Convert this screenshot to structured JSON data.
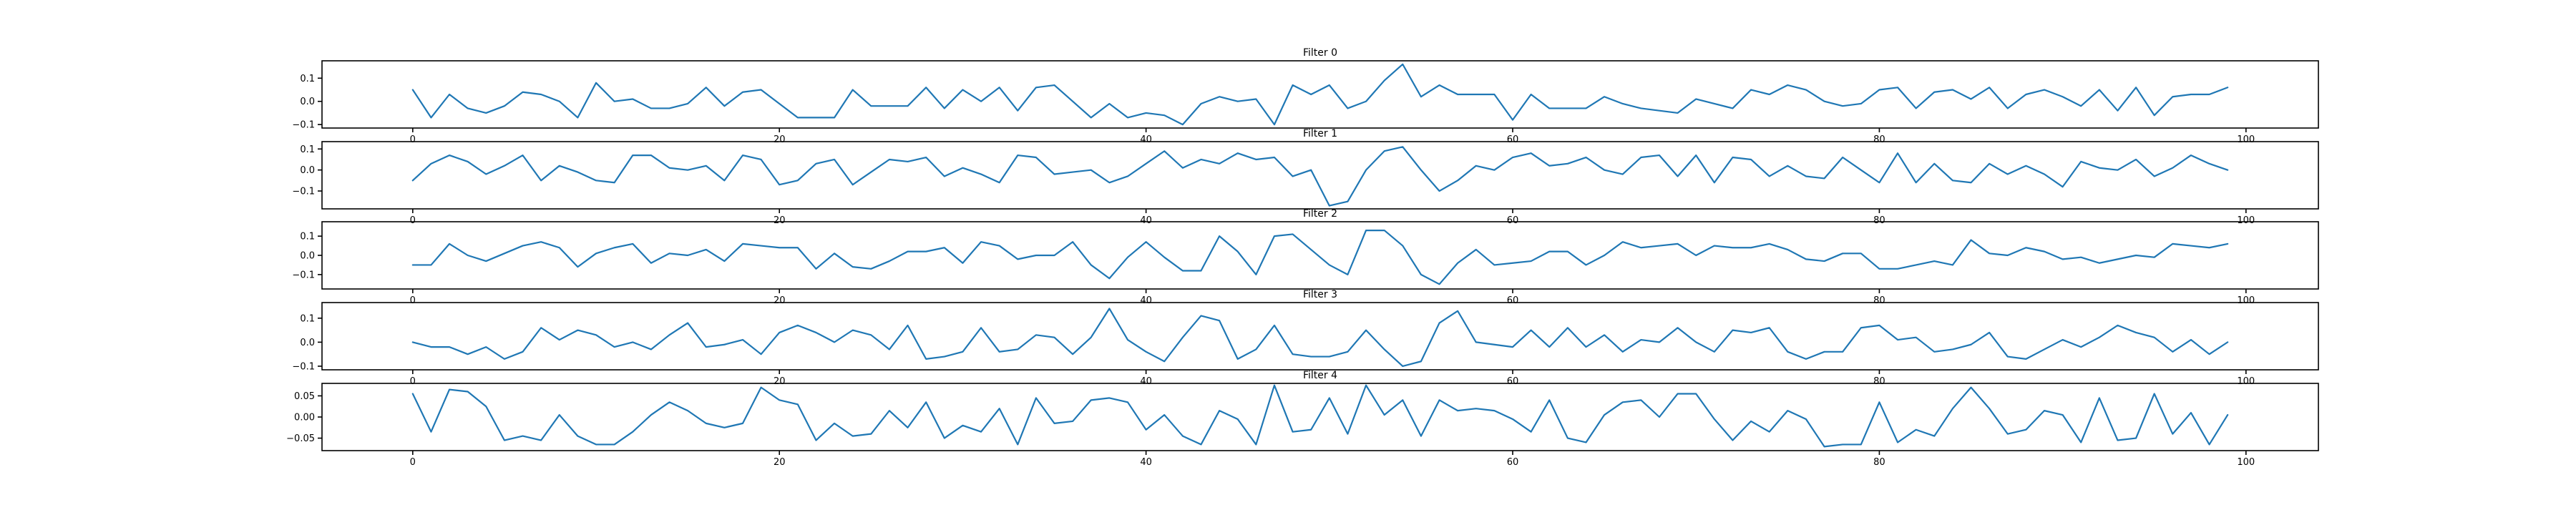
{
  "chart_data": [
    {
      "type": "line",
      "title": "Filter 0",
      "xlabel": "",
      "ylabel": "",
      "xlim": [
        -4.95,
        103.95
      ],
      "ylim": [
        -0.115,
        0.175
      ],
      "xticks": [
        0,
        20,
        40,
        60,
        80,
        100
      ],
      "yticks": [
        0.1,
        0.0,
        -0.1
      ],
      "ytick_labels": [
        "0.1",
        "0.0",
        "−0.1"
      ],
      "grid": false,
      "color": "#1f77b4",
      "values": [
        0.05,
        -0.07,
        0.03,
        -0.03,
        -0.05,
        -0.02,
        0.04,
        0.03,
        0.0,
        -0.07,
        0.08,
        0.0,
        0.01,
        -0.03,
        -0.03,
        -0.01,
        0.06,
        -0.02,
        0.04,
        0.05,
        -0.01,
        -0.07,
        -0.07,
        -0.07,
        0.05,
        -0.02,
        -0.02,
        -0.02,
        0.06,
        -0.03,
        0.05,
        0.0,
        0.06,
        -0.04,
        0.06,
        0.07,
        0.0,
        -0.07,
        -0.01,
        -0.07,
        -0.05,
        -0.06,
        -0.1,
        -0.01,
        0.02,
        0.0,
        0.01,
        -0.1,
        0.07,
        0.03,
        0.07,
        -0.03,
        0.0,
        0.09,
        0.16,
        0.02,
        0.07,
        0.03,
        0.03,
        0.03,
        -0.08,
        0.03,
        -0.03,
        -0.03,
        -0.03,
        0.02,
        -0.01,
        -0.03,
        -0.04,
        -0.05,
        0.01,
        -0.01,
        -0.03,
        0.05,
        0.03,
        0.07,
        0.05,
        0.0,
        -0.02,
        -0.01,
        0.05,
        0.06,
        -0.03,
        0.04,
        0.05,
        0.01,
        0.06,
        -0.03,
        0.03,
        0.05,
        0.02,
        -0.02,
        0.05,
        -0.04,
        0.06,
        -0.06,
        0.02,
        0.03,
        0.03,
        0.06
      ]
    },
    {
      "type": "line",
      "title": "Filter 1",
      "xlabel": "",
      "ylabel": "",
      "xlim": [
        -4.95,
        103.95
      ],
      "ylim": [
        -0.185,
        0.135
      ],
      "xticks": [
        0,
        20,
        40,
        60,
        80,
        100
      ],
      "yticks": [
        0.1,
        0.0,
        -0.1
      ],
      "ytick_labels": [
        "0.1",
        "0.0",
        "−0.1"
      ],
      "grid": false,
      "color": "#1f77b4",
      "values": [
        -0.05,
        0.03,
        0.07,
        0.04,
        -0.02,
        0.02,
        0.07,
        -0.05,
        0.02,
        -0.01,
        -0.05,
        -0.06,
        0.07,
        0.07,
        0.01,
        0.0,
        0.02,
        -0.05,
        0.07,
        0.05,
        -0.07,
        -0.05,
        0.03,
        0.05,
        -0.07,
        -0.01,
        0.05,
        0.04,
        0.06,
        -0.03,
        0.01,
        -0.02,
        -0.06,
        0.07,
        0.06,
        -0.02,
        -0.01,
        0.0,
        -0.06,
        -0.03,
        0.03,
        0.09,
        0.01,
        0.05,
        0.03,
        0.08,
        0.05,
        0.06,
        -0.03,
        0.0,
        -0.17,
        -0.15,
        0.0,
        0.09,
        0.11,
        0.0,
        -0.1,
        -0.05,
        0.02,
        0.0,
        0.06,
        0.08,
        0.02,
        0.03,
        0.06,
        0.0,
        -0.02,
        0.06,
        0.07,
        -0.03,
        0.07,
        -0.06,
        0.06,
        0.05,
        -0.03,
        0.02,
        -0.03,
        -0.04,
        0.06,
        0.0,
        -0.06,
        0.08,
        -0.06,
        0.03,
        -0.05,
        -0.06,
        0.03,
        -0.02,
        0.02,
        -0.02,
        -0.08,
        0.04,
        0.01,
        0.0,
        0.05,
        -0.03,
        0.01,
        0.07,
        0.03,
        0.0
      ]
    },
    {
      "type": "line",
      "title": "Filter 2",
      "xlabel": "",
      "ylabel": "",
      "xlim": [
        -4.95,
        103.95
      ],
      "ylim": [
        -0.175,
        0.175
      ],
      "xticks": [
        0,
        20,
        40,
        60,
        80,
        100
      ],
      "yticks": [
        0.1,
        0.0,
        -0.1
      ],
      "ytick_labels": [
        "0.1",
        "0.0",
        "−0.1"
      ],
      "grid": false,
      "color": "#1f77b4",
      "values": [
        -0.05,
        -0.05,
        0.06,
        0.0,
        -0.03,
        0.01,
        0.05,
        0.07,
        0.04,
        -0.06,
        0.01,
        0.04,
        0.06,
        -0.04,
        0.01,
        0.0,
        0.03,
        -0.03,
        0.06,
        0.05,
        0.04,
        0.04,
        -0.07,
        0.01,
        -0.06,
        -0.07,
        -0.03,
        0.02,
        0.02,
        0.04,
        -0.04,
        0.07,
        0.05,
        -0.02,
        0.0,
        0.0,
        0.07,
        -0.05,
        -0.12,
        -0.01,
        0.07,
        -0.01,
        -0.08,
        -0.08,
        0.1,
        0.02,
        -0.1,
        0.1,
        0.11,
        0.03,
        -0.05,
        -0.1,
        0.13,
        0.13,
        0.05,
        -0.1,
        -0.15,
        -0.04,
        0.03,
        -0.05,
        -0.04,
        -0.03,
        0.02,
        0.02,
        -0.05,
        0.0,
        0.07,
        0.04,
        0.05,
        0.06,
        0.0,
        0.05,
        0.04,
        0.04,
        0.06,
        0.03,
        -0.02,
        -0.03,
        0.01,
        0.01,
        -0.07,
        -0.07,
        -0.05,
        -0.03,
        -0.05,
        0.08,
        0.01,
        0.0,
        0.04,
        0.02,
        -0.02,
        -0.01,
        -0.04,
        -0.02,
        0.0,
        -0.01,
        0.06,
        0.05,
        0.04,
        0.06
      ]
    },
    {
      "type": "line",
      "title": "Filter 3",
      "xlabel": "",
      "ylabel": "",
      "xlim": [
        -4.95,
        103.95
      ],
      "ylim": [
        -0.115,
        0.165
      ],
      "xticks": [
        0,
        20,
        40,
        60,
        80,
        100
      ],
      "yticks": [
        0.1,
        0.0,
        -0.1
      ],
      "ytick_labels": [
        "0.1",
        "0.0",
        "−0.1"
      ],
      "grid": false,
      "color": "#1f77b4",
      "values": [
        0.0,
        -0.02,
        -0.02,
        -0.05,
        -0.02,
        -0.07,
        -0.04,
        0.06,
        0.01,
        0.05,
        0.03,
        -0.02,
        0.0,
        -0.03,
        0.03,
        0.08,
        -0.02,
        -0.01,
        0.01,
        -0.05,
        0.04,
        0.07,
        0.04,
        0.0,
        0.05,
        0.03,
        -0.03,
        0.07,
        -0.07,
        -0.06,
        -0.04,
        0.06,
        -0.04,
        -0.03,
        0.03,
        0.02,
        -0.05,
        0.02,
        0.14,
        0.01,
        -0.04,
        -0.08,
        0.02,
        0.11,
        0.09,
        -0.07,
        -0.03,
        0.07,
        -0.05,
        -0.06,
        -0.06,
        -0.04,
        0.05,
        -0.03,
        -0.1,
        -0.08,
        0.08,
        0.13,
        0.0,
        -0.01,
        -0.02,
        0.05,
        -0.02,
        0.06,
        -0.02,
        0.03,
        -0.04,
        0.01,
        0.0,
        0.06,
        0.0,
        -0.04,
        0.05,
        0.04,
        0.06,
        -0.04,
        -0.07,
        -0.04,
        -0.04,
        0.06,
        0.07,
        0.01,
        0.02,
        -0.04,
        -0.03,
        -0.01,
        0.04,
        -0.06,
        -0.07,
        -0.03,
        0.01,
        -0.02,
        0.02,
        0.07,
        0.04,
        0.02,
        -0.04,
        0.01,
        -0.05,
        0.0
      ]
    },
    {
      "type": "line",
      "title": "Filter 4",
      "xlabel": "",
      "ylabel": "",
      "xlim": [
        -4.95,
        103.95
      ],
      "ylim": [
        -0.0795,
        0.0795
      ],
      "xticks": [
        0,
        20,
        40,
        60,
        80,
        100
      ],
      "yticks": [
        0.05,
        0.0,
        -0.05
      ],
      "ytick_labels": [
        "0.05",
        "0.00",
        "−0.05"
      ],
      "grid": false,
      "color": "#1f77b4",
      "values": [
        0.055,
        -0.035,
        0.065,
        0.06,
        0.025,
        -0.055,
        -0.045,
        -0.055,
        0.005,
        -0.045,
        -0.065,
        -0.065,
        -0.035,
        0.005,
        0.035,
        0.015,
        -0.015,
        -0.025,
        -0.015,
        0.07,
        0.04,
        0.03,
        -0.055,
        -0.015,
        -0.045,
        -0.04,
        0.015,
        -0.025,
        0.035,
        -0.05,
        -0.02,
        -0.035,
        0.02,
        -0.065,
        0.045,
        -0.015,
        -0.01,
        0.04,
        0.045,
        0.035,
        -0.03,
        0.005,
        -0.045,
        -0.065,
        0.015,
        -0.005,
        -0.065,
        0.075,
        -0.035,
        -0.03,
        0.045,
        -0.04,
        0.075,
        0.005,
        0.04,
        -0.045,
        0.04,
        0.015,
        0.02,
        0.015,
        -0.005,
        -0.035,
        0.04,
        -0.05,
        -0.06,
        0.005,
        0.035,
        0.04,
        0.0,
        0.055,
        0.055,
        -0.005,
        -0.055,
        -0.01,
        -0.035,
        0.015,
        -0.005,
        -0.07,
        -0.065,
        -0.065,
        0.035,
        -0.06,
        -0.03,
        -0.045,
        0.02,
        0.07,
        0.02,
        -0.04,
        -0.03,
        0.015,
        0.005,
        -0.06,
        0.045,
        -0.055,
        -0.05,
        0.055,
        -0.04,
        0.01,
        -0.065,
        0.005
      ]
    }
  ]
}
